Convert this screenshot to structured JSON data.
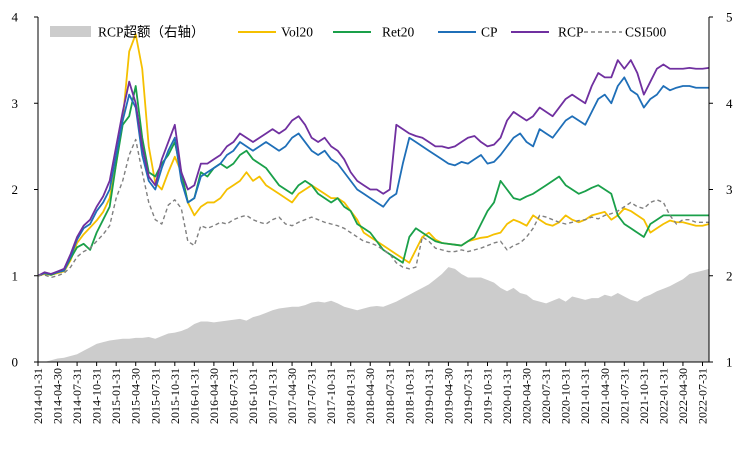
{
  "chart_data": {
    "type": "line",
    "title": "",
    "xlabel": "",
    "ylabel": "",
    "y2label": "",
    "ylim": [
      0,
      4
    ],
    "y2lim": [
      1,
      5
    ],
    "yticks": [
      0,
      1,
      2,
      3,
      4
    ],
    "y2ticks": [
      1,
      2,
      3,
      4,
      5
    ],
    "legend_position": "top",
    "grid": false,
    "x_tick_labels": [
      "2014-01-31",
      "2014-04-30",
      "2014-07-31",
      "2014-10-31",
      "2015-01-31",
      "2015-04-30",
      "2015-07-31",
      "2015-10-31",
      "2016-01-31",
      "2016-04-30",
      "2016-07-31",
      "2016-10-31",
      "2017-01-31",
      "2017-04-30",
      "2017-07-31",
      "2017-10-31",
      "2018-01-31",
      "2018-04-30",
      "2018-07-31",
      "2018-10-31",
      "2019-01-31",
      "2019-04-30",
      "2019-07-31",
      "2019-10-31",
      "2020-01-31",
      "2020-04-30",
      "2020-07-31",
      "2020-10-31",
      "2021-01-31",
      "2021-04-30",
      "2021-07-31",
      "2021-10-31",
      "2022-01-31",
      "2022-04-30",
      "2022-07-31"
    ],
    "x_months": [
      "2014-01",
      "2014-02",
      "2014-03",
      "2014-04",
      "2014-05",
      "2014-06",
      "2014-07",
      "2014-08",
      "2014-09",
      "2014-10",
      "2014-11",
      "2014-12",
      "2015-01",
      "2015-02",
      "2015-03",
      "2015-04",
      "2015-05",
      "2015-06",
      "2015-07",
      "2015-08",
      "2015-09",
      "2015-10",
      "2015-11",
      "2015-12",
      "2016-01",
      "2016-02",
      "2016-03",
      "2016-04",
      "2016-05",
      "2016-06",
      "2016-07",
      "2016-08",
      "2016-09",
      "2016-10",
      "2016-11",
      "2016-12",
      "2017-01",
      "2017-02",
      "2017-03",
      "2017-04",
      "2017-05",
      "2017-06",
      "2017-07",
      "2017-08",
      "2017-09",
      "2017-10",
      "2017-11",
      "2017-12",
      "2018-01",
      "2018-02",
      "2018-03",
      "2018-04",
      "2018-05",
      "2018-06",
      "2018-07",
      "2018-08",
      "2018-09",
      "2018-10",
      "2018-11",
      "2018-12",
      "2019-01",
      "2019-02",
      "2019-03",
      "2019-04",
      "2019-05",
      "2019-06",
      "2019-07",
      "2019-08",
      "2019-09",
      "2019-10",
      "2019-11",
      "2019-12",
      "2020-01",
      "2020-02",
      "2020-03",
      "2020-04",
      "2020-05",
      "2020-06",
      "2020-07",
      "2020-08",
      "2020-09",
      "2020-10",
      "2020-11",
      "2020-12",
      "2021-01",
      "2021-02",
      "2021-03",
      "2021-04",
      "2021-05",
      "2021-06",
      "2021-07",
      "2021-08",
      "2021-09",
      "2021-10",
      "2021-11",
      "2021-12",
      "2022-01",
      "2022-02",
      "2022-03",
      "2022-04",
      "2022-05",
      "2022-06",
      "2022-07",
      "2022-08"
    ],
    "area_series": {
      "name": "RCP超额（右轴）",
      "axis": "right",
      "color": "#cccccc",
      "values": [
        1.0,
        1.0,
        1.02,
        1.04,
        1.05,
        1.07,
        1.09,
        1.13,
        1.17,
        1.21,
        1.23,
        1.25,
        1.26,
        1.27,
        1.27,
        1.28,
        1.28,
        1.29,
        1.27,
        1.3,
        1.33,
        1.34,
        1.36,
        1.39,
        1.44,
        1.47,
        1.47,
        1.46,
        1.47,
        1.48,
        1.49,
        1.5,
        1.48,
        1.52,
        1.54,
        1.57,
        1.6,
        1.62,
        1.63,
        1.64,
        1.64,
        1.66,
        1.69,
        1.7,
        1.69,
        1.71,
        1.68,
        1.64,
        1.62,
        1.6,
        1.62,
        1.64,
        1.65,
        1.64,
        1.67,
        1.7,
        1.74,
        1.78,
        1.82,
        1.86,
        1.9,
        1.96,
        2.02,
        2.1,
        2.08,
        2.02,
        1.98,
        1.98,
        1.98,
        1.95,
        1.92,
        1.86,
        1.82,
        1.86,
        1.8,
        1.78,
        1.72,
        1.7,
        1.68,
        1.71,
        1.74,
        1.7,
        1.76,
        1.74,
        1.72,
        1.74,
        1.74,
        1.78,
        1.76,
        1.8,
        1.76,
        1.72,
        1.7,
        1.75,
        1.78,
        1.82,
        1.85,
        1.88,
        1.92,
        1.96,
        2.02,
        2.04,
        2.06,
        2.08
      ]
    },
    "series": [
      {
        "name": "Vol20",
        "axis": "left",
        "color": "#f5c000",
        "dash": "",
        "values": [
          1.0,
          1.02,
          1.01,
          1.03,
          1.05,
          1.18,
          1.38,
          1.48,
          1.56,
          1.64,
          1.74,
          1.9,
          2.3,
          2.8,
          3.6,
          3.8,
          3.4,
          2.5,
          2.08,
          2.0,
          2.2,
          2.38,
          2.2,
          1.85,
          1.7,
          1.8,
          1.85,
          1.85,
          1.9,
          2.0,
          2.05,
          2.1,
          2.2,
          2.1,
          2.15,
          2.05,
          2.0,
          1.95,
          1.9,
          1.85,
          1.95,
          2.0,
          2.05,
          2.0,
          1.95,
          1.9,
          1.9,
          1.85,
          1.75,
          1.65,
          1.5,
          1.45,
          1.4,
          1.35,
          1.3,
          1.25,
          1.2,
          1.15,
          1.3,
          1.45,
          1.5,
          1.42,
          1.38,
          1.37,
          1.36,
          1.35,
          1.4,
          1.42,
          1.44,
          1.45,
          1.48,
          1.5,
          1.6,
          1.65,
          1.62,
          1.58,
          1.7,
          1.65,
          1.6,
          1.58,
          1.62,
          1.7,
          1.65,
          1.62,
          1.65,
          1.7,
          1.72,
          1.74,
          1.65,
          1.7,
          1.78,
          1.75,
          1.7,
          1.65,
          1.5,
          1.55,
          1.6,
          1.64,
          1.62,
          1.62,
          1.6,
          1.58,
          1.58,
          1.6
        ]
      },
      {
        "name": "Ret20",
        "axis": "left",
        "color": "#1aa04a",
        "dash": "",
        "values": [
          1.0,
          1.03,
          1.01,
          1.04,
          1.06,
          1.2,
          1.33,
          1.37,
          1.3,
          1.5,
          1.65,
          1.8,
          2.3,
          2.75,
          2.85,
          3.2,
          2.6,
          2.2,
          2.15,
          2.3,
          2.4,
          2.55,
          2.2,
          1.85,
          1.9,
          2.2,
          2.15,
          2.25,
          2.3,
          2.25,
          2.3,
          2.4,
          2.45,
          2.35,
          2.3,
          2.25,
          2.15,
          2.05,
          2.0,
          1.95,
          2.05,
          2.1,
          2.05,
          1.95,
          1.9,
          1.85,
          1.9,
          1.8,
          1.75,
          1.6,
          1.55,
          1.5,
          1.4,
          1.3,
          1.25,
          1.2,
          1.15,
          1.45,
          1.55,
          1.5,
          1.45,
          1.4,
          1.38,
          1.37,
          1.36,
          1.35,
          1.4,
          1.45,
          1.6,
          1.75,
          1.85,
          2.1,
          2.0,
          1.9,
          1.88,
          1.92,
          1.95,
          2.0,
          2.05,
          2.1,
          2.15,
          2.05,
          2.0,
          1.95,
          1.98,
          2.02,
          2.05,
          2.0,
          1.95,
          1.7,
          1.6,
          1.55,
          1.5,
          1.45,
          1.6,
          1.65,
          1.7,
          1.7,
          1.7,
          1.7,
          1.7,
          1.7,
          1.7,
          1.7
        ]
      },
      {
        "name": "CP",
        "axis": "left",
        "color": "#1f6fb8",
        "dash": "",
        "values": [
          1.0,
          1.03,
          1.02,
          1.04,
          1.06,
          1.22,
          1.42,
          1.55,
          1.6,
          1.75,
          1.85,
          2.0,
          2.4,
          2.8,
          3.1,
          2.95,
          2.4,
          2.1,
          2.0,
          2.25,
          2.45,
          2.6,
          2.1,
          1.85,
          1.9,
          2.15,
          2.2,
          2.25,
          2.3,
          2.4,
          2.45,
          2.55,
          2.5,
          2.45,
          2.5,
          2.55,
          2.5,
          2.45,
          2.5,
          2.6,
          2.65,
          2.55,
          2.45,
          2.4,
          2.45,
          2.35,
          2.3,
          2.2,
          2.1,
          2.0,
          1.95,
          1.9,
          1.85,
          1.8,
          1.9,
          1.95,
          2.3,
          2.6,
          2.55,
          2.5,
          2.45,
          2.4,
          2.35,
          2.3,
          2.28,
          2.32,
          2.3,
          2.35,
          2.4,
          2.3,
          2.32,
          2.4,
          2.5,
          2.6,
          2.65,
          2.55,
          2.5,
          2.7,
          2.65,
          2.6,
          2.7,
          2.8,
          2.85,
          2.8,
          2.75,
          2.9,
          3.05,
          3.1,
          3.0,
          3.2,
          3.3,
          3.15,
          3.1,
          2.95,
          3.05,
          3.1,
          3.2,
          3.15,
          3.18,
          3.2,
          3.2,
          3.18,
          3.18,
          3.18
        ]
      },
      {
        "name": "RCP",
        "axis": "left",
        "color": "#7030a0",
        "dash": "",
        "values": [
          1.0,
          1.04,
          1.02,
          1.05,
          1.08,
          1.25,
          1.45,
          1.58,
          1.65,
          1.8,
          1.92,
          2.1,
          2.5,
          2.9,
          3.25,
          3.0,
          2.5,
          2.15,
          2.05,
          2.35,
          2.55,
          2.75,
          2.2,
          2.0,
          2.05,
          2.3,
          2.3,
          2.35,
          2.4,
          2.5,
          2.55,
          2.65,
          2.6,
          2.55,
          2.6,
          2.65,
          2.7,
          2.65,
          2.7,
          2.8,
          2.85,
          2.75,
          2.6,
          2.55,
          2.6,
          2.5,
          2.45,
          2.35,
          2.2,
          2.1,
          2.05,
          2.0,
          2.0,
          1.95,
          2.0,
          2.75,
          2.7,
          2.65,
          2.62,
          2.6,
          2.55,
          2.5,
          2.5,
          2.48,
          2.5,
          2.55,
          2.6,
          2.62,
          2.55,
          2.5,
          2.52,
          2.6,
          2.8,
          2.9,
          2.85,
          2.8,
          2.85,
          2.95,
          2.9,
          2.85,
          2.95,
          3.05,
          3.1,
          3.05,
          3.0,
          3.2,
          3.35,
          3.3,
          3.3,
          3.5,
          3.4,
          3.5,
          3.35,
          3.1,
          3.25,
          3.4,
          3.45,
          3.4,
          3.4,
          3.4,
          3.41,
          3.4,
          3.4,
          3.41
        ]
      },
      {
        "name": "CSI500",
        "axis": "left",
        "color": "#808080",
        "dash": "4,3",
        "values": [
          1.0,
          1.01,
          0.98,
          1.0,
          1.03,
          1.1,
          1.22,
          1.28,
          1.32,
          1.4,
          1.48,
          1.58,
          1.9,
          2.1,
          2.4,
          2.58,
          2.2,
          1.85,
          1.65,
          1.6,
          1.82,
          1.88,
          1.78,
          1.4,
          1.35,
          1.58,
          1.55,
          1.58,
          1.62,
          1.6,
          1.65,
          1.68,
          1.7,
          1.65,
          1.62,
          1.6,
          1.65,
          1.68,
          1.6,
          1.58,
          1.62,
          1.65,
          1.68,
          1.65,
          1.62,
          1.6,
          1.58,
          1.55,
          1.5,
          1.45,
          1.4,
          1.38,
          1.35,
          1.3,
          1.25,
          1.15,
          1.1,
          1.08,
          1.1,
          1.45,
          1.4,
          1.32,
          1.3,
          1.28,
          1.28,
          1.3,
          1.28,
          1.3,
          1.32,
          1.35,
          1.38,
          1.4,
          1.3,
          1.35,
          1.38,
          1.45,
          1.55,
          1.7,
          1.68,
          1.65,
          1.62,
          1.6,
          1.62,
          1.64,
          1.65,
          1.68,
          1.66,
          1.7,
          1.72,
          1.75,
          1.8,
          1.85,
          1.8,
          1.78,
          1.85,
          1.88,
          1.85,
          1.7,
          1.6,
          1.65,
          1.65,
          1.62,
          1.62,
          1.62
        ]
      }
    ]
  }
}
